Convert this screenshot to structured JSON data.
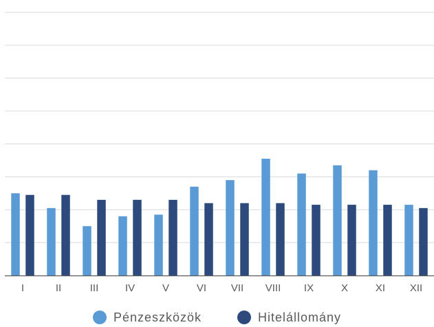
{
  "chart_data": {
    "type": "bar",
    "categories": [
      "I",
      "II",
      "III",
      "IV",
      "V",
      "VI",
      "VII",
      "VIII",
      "IX",
      "X",
      "XI",
      "XII"
    ],
    "series": [
      {
        "name": "Pénzeszközök",
        "color": "#5b9bd5",
        "values": [
          2.5,
          2.05,
          1.5,
          1.8,
          1.85,
          2.7,
          2.9,
          3.55,
          3.1,
          3.35,
          3.2,
          2.15
        ]
      },
      {
        "name": "Hitelállomány",
        "color": "#2e4a7d",
        "values": [
          2.45,
          2.45,
          2.3,
          2.3,
          2.3,
          2.2,
          2.2,
          2.2,
          2.15,
          2.15,
          2.15,
          2.05
        ]
      }
    ],
    "ylim": [
      0,
      8
    ],
    "yticks_shown": false,
    "grid": true,
    "legend_position": "bottom"
  }
}
